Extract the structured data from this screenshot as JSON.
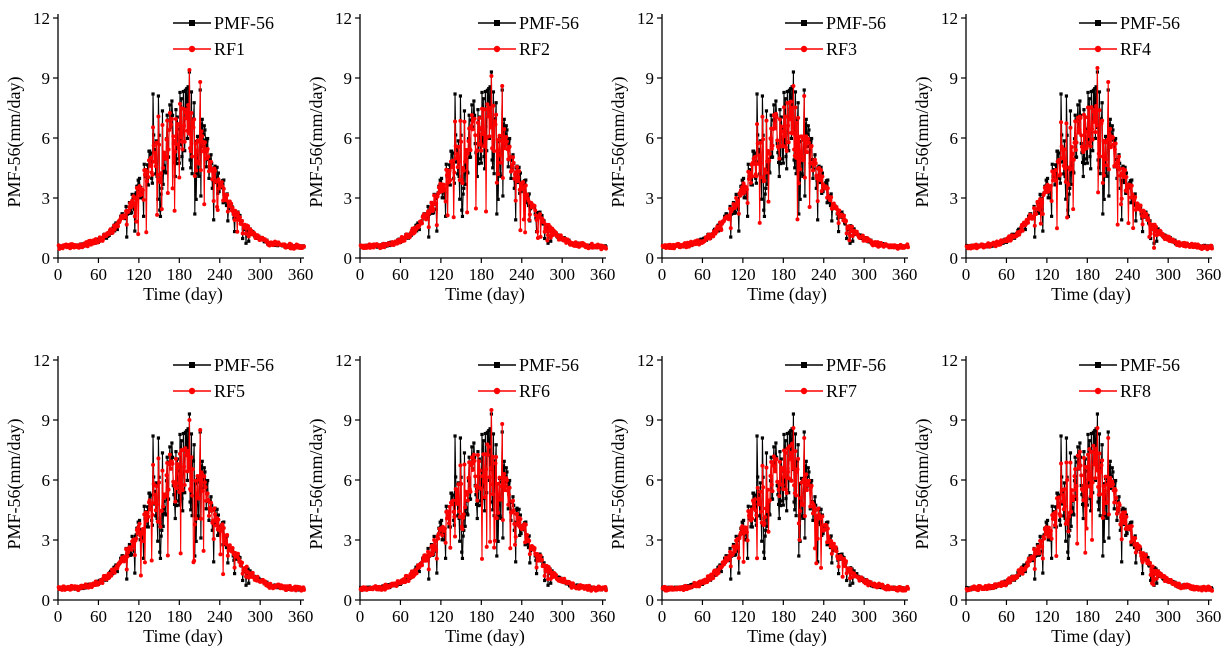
{
  "figure": {
    "panels": [
      "RF1",
      "RF2",
      "RF3",
      "RF4",
      "RF5",
      "RF6",
      "RF7",
      "RF8"
    ]
  },
  "chart_data": [
    {
      "type": "line",
      "xlabel": "Time (day)",
      "ylabel": "PMF-56(mm/day)",
      "xlim": [
        0,
        365
      ],
      "ylim": [
        0,
        12
      ],
      "xticks": [
        0,
        60,
        120,
        180,
        240,
        300,
        360
      ],
      "yticks": [
        0,
        3,
        6,
        9,
        12
      ],
      "legend_position": "top-right",
      "series": [
        {
          "name": "PMF-56",
          "color": "#000000",
          "marker": "square"
        },
        {
          "name": "RF1",
          "color": "#ff0000",
          "marker": "circle"
        }
      ],
      "x_sampling": "daily, day 1 to 365",
      "reference_peak_day": 195,
      "reference_peak": 9.3,
      "model_peak": 9.4
    },
    {
      "type": "line",
      "xlabel": "Time (day)",
      "ylabel": "PMF-56(mm/day)",
      "xlim": [
        0,
        365
      ],
      "ylim": [
        0,
        12
      ],
      "xticks": [
        0,
        60,
        120,
        180,
        240,
        300,
        360
      ],
      "yticks": [
        0,
        3,
        6,
        9,
        12
      ],
      "legend_position": "top-right",
      "series": [
        {
          "name": "PMF-56",
          "color": "#000000",
          "marker": "square"
        },
        {
          "name": "RF2",
          "color": "#ff0000",
          "marker": "circle"
        }
      ],
      "x_sampling": "daily, day 1 to 365",
      "reference_peak_day": 195,
      "reference_peak": 9.3,
      "model_peak": 9.1
    },
    {
      "type": "line",
      "xlabel": "Time (day)",
      "ylabel": "PMF-56(mm/day)",
      "xlim": [
        0,
        365
      ],
      "ylim": [
        0,
        12
      ],
      "xticks": [
        0,
        60,
        120,
        180,
        240,
        300,
        360
      ],
      "yticks": [
        0,
        3,
        6,
        9,
        12
      ],
      "legend_position": "top-right",
      "series": [
        {
          "name": "PMF-56",
          "color": "#000000",
          "marker": "square"
        },
        {
          "name": "RF3",
          "color": "#ff0000",
          "marker": "circle"
        }
      ],
      "x_sampling": "daily, day 1 to 365",
      "reference_peak_day": 195,
      "reference_peak": 9.3,
      "model_peak": 8.6
    },
    {
      "type": "line",
      "xlabel": "Time (day)",
      "ylabel": "PMF-56(mm/day)",
      "xlim": [
        0,
        365
      ],
      "ylim": [
        0,
        12
      ],
      "xticks": [
        0,
        60,
        120,
        180,
        240,
        300,
        360
      ],
      "yticks": [
        0,
        3,
        6,
        9,
        12
      ],
      "legend_position": "top-right",
      "series": [
        {
          "name": "PMF-56",
          "color": "#000000",
          "marker": "square"
        },
        {
          "name": "RF4",
          "color": "#ff0000",
          "marker": "circle"
        }
      ],
      "x_sampling": "daily, day 1 to 365",
      "reference_peak_day": 195,
      "reference_peak": 9.3,
      "model_peak": 9.5
    },
    {
      "type": "line",
      "xlabel": "Time (day)",
      "ylabel": "PMF-56(mm/day)",
      "xlim": [
        0,
        365
      ],
      "ylim": [
        0,
        12
      ],
      "xticks": [
        0,
        60,
        120,
        180,
        240,
        300,
        360
      ],
      "yticks": [
        0,
        3,
        6,
        9,
        12
      ],
      "legend_position": "top-right",
      "series": [
        {
          "name": "PMF-56",
          "color": "#000000",
          "marker": "square"
        },
        {
          "name": "RF5",
          "color": "#ff0000",
          "marker": "circle"
        }
      ],
      "x_sampling": "daily, day 1 to 365",
      "reference_peak_day": 195,
      "reference_peak": 9.3,
      "model_peak": 9.0
    },
    {
      "type": "line",
      "xlabel": "Time (day)",
      "ylabel": "PMF-56(mm/day)",
      "xlim": [
        0,
        365
      ],
      "ylim": [
        0,
        12
      ],
      "xticks": [
        0,
        60,
        120,
        180,
        240,
        300,
        360
      ],
      "yticks": [
        0,
        3,
        6,
        9,
        12
      ],
      "legend_position": "top-right",
      "series": [
        {
          "name": "PMF-56",
          "color": "#000000",
          "marker": "square"
        },
        {
          "name": "RF6",
          "color": "#ff0000",
          "marker": "circle"
        }
      ],
      "x_sampling": "daily, day 1 to 365",
      "reference_peak_day": 195,
      "reference_peak": 9.3,
      "model_peak": 9.5
    },
    {
      "type": "line",
      "xlabel": "Time (day)",
      "ylabel": "PMF-56(mm/day)",
      "xlim": [
        0,
        365
      ],
      "ylim": [
        0,
        12
      ],
      "xticks": [
        0,
        60,
        120,
        180,
        240,
        300,
        360
      ],
      "yticks": [
        0,
        3,
        6,
        9,
        12
      ],
      "legend_position": "top-right",
      "series": [
        {
          "name": "PMF-56",
          "color": "#000000",
          "marker": "square"
        },
        {
          "name": "RF7",
          "color": "#ff0000",
          "marker": "circle"
        }
      ],
      "x_sampling": "daily, day 1 to 365",
      "reference_peak_day": 195,
      "reference_peak": 9.3,
      "model_peak": 8.6
    },
    {
      "type": "line",
      "xlabel": "Time (day)",
      "ylabel": "PMF-56(mm/day)",
      "xlim": [
        0,
        365
      ],
      "ylim": [
        0,
        12
      ],
      "xticks": [
        0,
        60,
        120,
        180,
        240,
        300,
        360
      ],
      "yticks": [
        0,
        3,
        6,
        9,
        12
      ],
      "legend_position": "top-right",
      "series": [
        {
          "name": "PMF-56",
          "color": "#000000",
          "marker": "square"
        },
        {
          "name": "RF8",
          "color": "#ff0000",
          "marker": "circle"
        }
      ],
      "x_sampling": "daily, day 1 to 365",
      "reference_peak_day": 195,
      "reference_peak": 9.3,
      "model_peak": 8.6
    }
  ]
}
